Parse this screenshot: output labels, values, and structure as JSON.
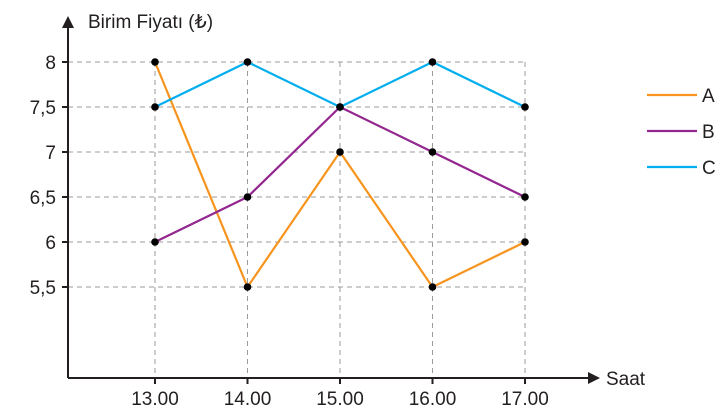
{
  "chart_data": {
    "type": "line",
    "ylabel": "Birim Fiyatı (₺)",
    "xlabel": "Saat",
    "categories": [
      "13.00",
      "14.00",
      "15.00",
      "16.00",
      "17.00"
    ],
    "y_ticks": [
      "5,5",
      "6",
      "6,5",
      "7",
      "7,5",
      "8"
    ],
    "y_tick_values": [
      5.5,
      6,
      6.5,
      7,
      7.5,
      8
    ],
    "ylim": [
      5,
      8
    ],
    "grid": true,
    "legend_position": "right",
    "series": [
      {
        "name": "A",
        "color": "#f7941d",
        "values": [
          8,
          5.5,
          7,
          5.5,
          6
        ]
      },
      {
        "name": "B",
        "color": "#93278f",
        "values": [
          6,
          6.5,
          7.5,
          7,
          6.5
        ]
      },
      {
        "name": "C",
        "color": "#00aeef",
        "values": [
          7.5,
          8,
          7.5,
          8,
          7.5
        ]
      }
    ]
  }
}
